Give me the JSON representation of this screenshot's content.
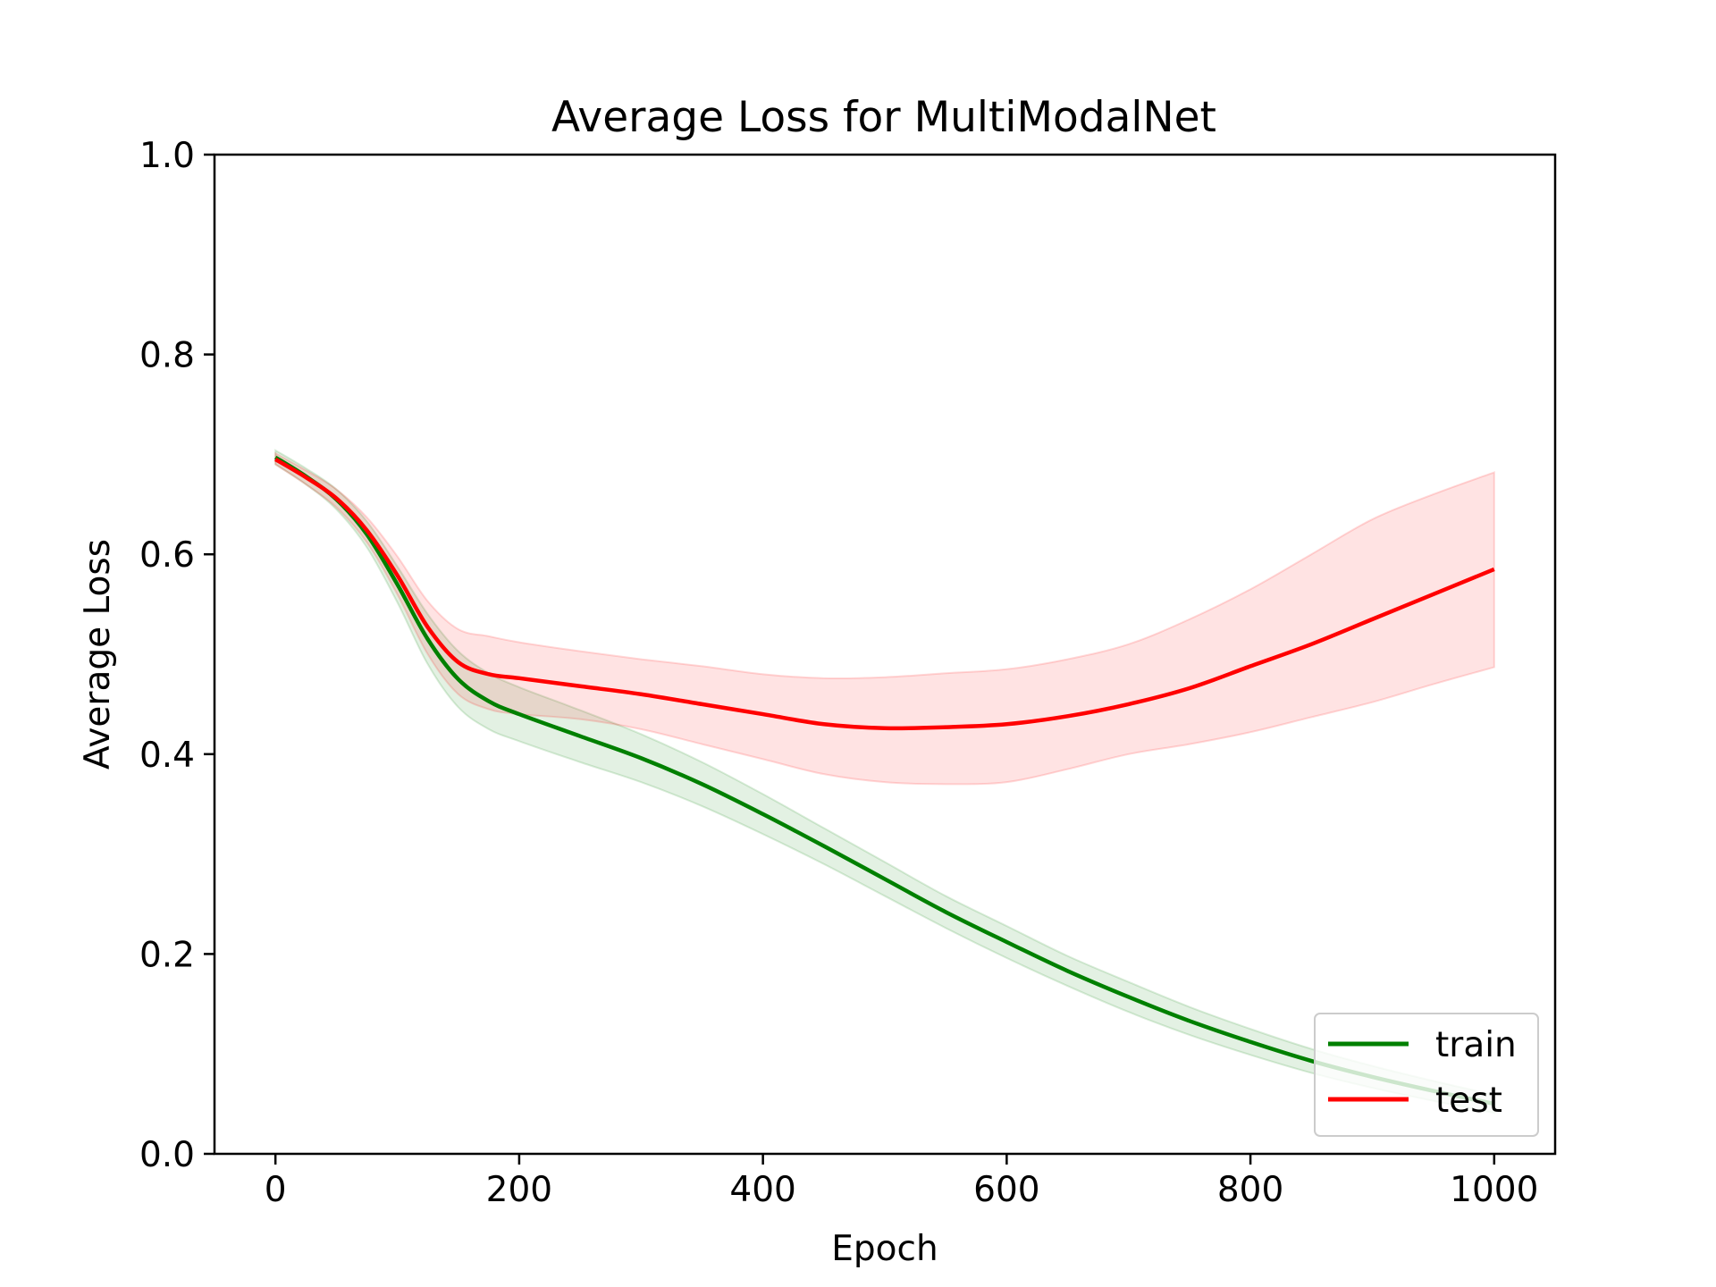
{
  "chart_data": {
    "type": "line",
    "title": "Average Loss for MultiModalNet",
    "xlabel": "Epoch",
    "ylabel": "Average Loss",
    "xlim": [
      -50,
      1050
    ],
    "ylim": [
      0.0,
      1.0
    ],
    "x_ticks": [
      0,
      200,
      400,
      600,
      800,
      1000
    ],
    "y_ticks": [
      0.0,
      0.2,
      0.4,
      0.6,
      0.8,
      1.0
    ],
    "grid": false,
    "legend_position": "lower-right",
    "series": [
      {
        "name": "train",
        "color": "#008000",
        "band_color": "#008000",
        "x": [
          0,
          25,
          50,
          75,
          100,
          125,
          150,
          175,
          200,
          250,
          300,
          350,
          400,
          450,
          500,
          550,
          600,
          650,
          700,
          750,
          800,
          850,
          900,
          950,
          1000
        ],
        "mean": [
          0.697,
          0.678,
          0.655,
          0.62,
          0.57,
          0.515,
          0.475,
          0.453,
          0.44,
          0.418,
          0.396,
          0.37,
          0.34,
          0.308,
          0.275,
          0.242,
          0.212,
          0.183,
          0.157,
          0.133,
          0.112,
          0.093,
          0.077,
          0.063,
          0.05
        ],
        "lower": [
          0.69,
          0.67,
          0.645,
          0.607,
          0.552,
          0.49,
          0.447,
          0.425,
          0.413,
          0.392,
          0.372,
          0.348,
          0.32,
          0.29,
          0.258,
          0.226,
          0.196,
          0.168,
          0.142,
          0.119,
          0.099,
          0.081,
          0.066,
          0.053,
          0.041
        ],
        "upper": [
          0.704,
          0.686,
          0.665,
          0.633,
          0.588,
          0.54,
          0.503,
          0.481,
          0.467,
          0.444,
          0.42,
          0.392,
          0.36,
          0.326,
          0.292,
          0.258,
          0.228,
          0.198,
          0.172,
          0.147,
          0.125,
          0.105,
          0.088,
          0.073,
          0.059
        ]
      },
      {
        "name": "test",
        "color": "#ff0000",
        "band_color": "#ff0000",
        "x": [
          0,
          25,
          50,
          75,
          100,
          125,
          150,
          175,
          200,
          250,
          300,
          350,
          400,
          450,
          500,
          550,
          600,
          650,
          700,
          750,
          800,
          850,
          900,
          950,
          1000
        ],
        "mean": [
          0.695,
          0.677,
          0.656,
          0.624,
          0.579,
          0.527,
          0.492,
          0.48,
          0.476,
          0.468,
          0.46,
          0.45,
          0.44,
          0.43,
          0.426,
          0.427,
          0.43,
          0.438,
          0.45,
          0.466,
          0.488,
          0.51,
          0.535,
          0.56,
          0.585
        ],
        "lower": [
          0.69,
          0.67,
          0.647,
          0.612,
          0.56,
          0.5,
          0.46,
          0.445,
          0.44,
          0.435,
          0.425,
          0.41,
          0.395,
          0.38,
          0.372,
          0.37,
          0.372,
          0.385,
          0.4,
          0.41,
          0.422,
          0.437,
          0.452,
          0.47,
          0.487
        ],
        "upper": [
          0.701,
          0.684,
          0.665,
          0.637,
          0.598,
          0.553,
          0.525,
          0.518,
          0.512,
          0.503,
          0.495,
          0.488,
          0.48,
          0.476,
          0.477,
          0.481,
          0.485,
          0.495,
          0.51,
          0.535,
          0.565,
          0.6,
          0.635,
          0.66,
          0.682
        ]
      }
    ]
  }
}
